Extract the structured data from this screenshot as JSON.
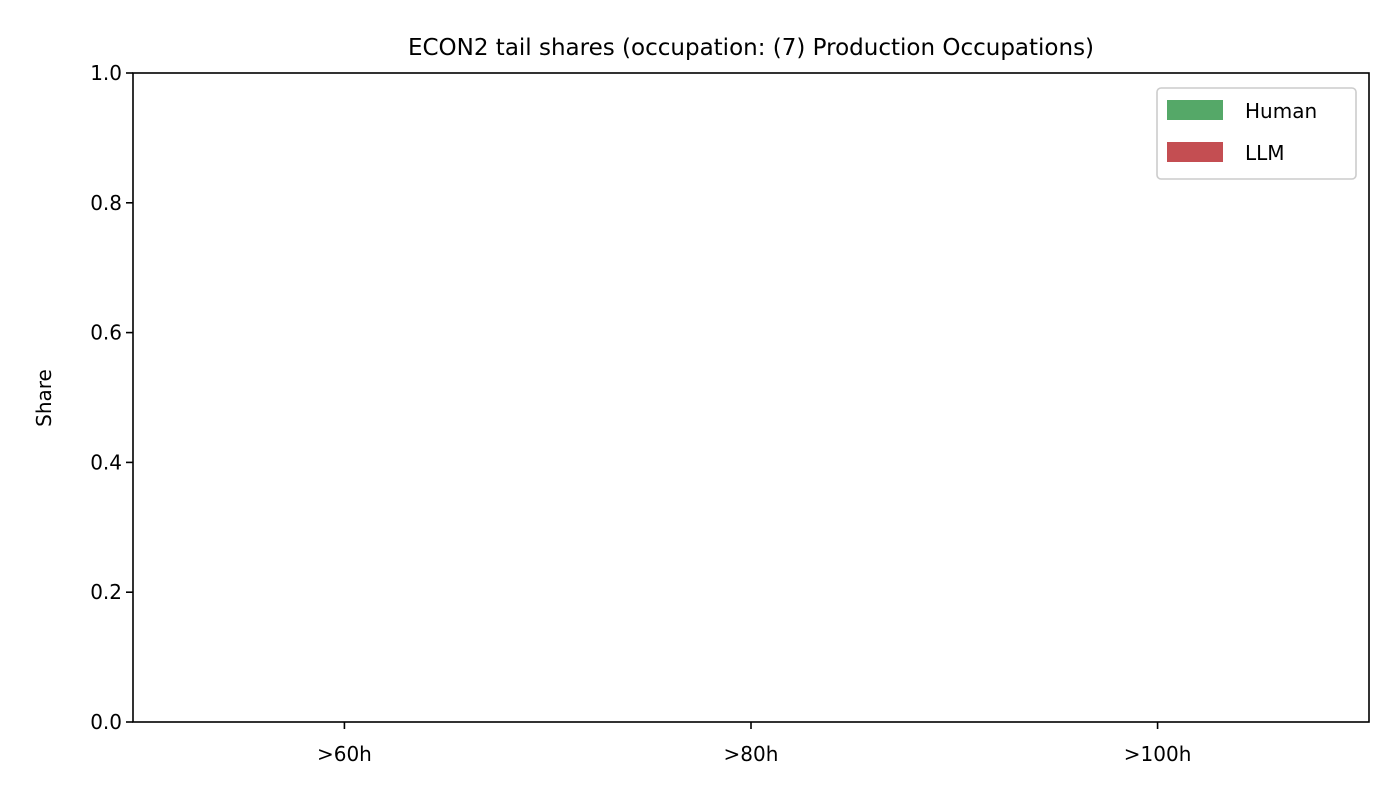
{
  "chart_data": {
    "type": "bar",
    "title": "ECON2 tail shares (occupation: (7) Production Occupations)",
    "xlabel": "",
    "ylabel": "Share",
    "categories": [
      ">60h",
      ">80h",
      ">100h"
    ],
    "series": [
      {
        "name": "Human",
        "color": "#55a868",
        "values": [
          0,
          0,
          0
        ]
      },
      {
        "name": "LLM",
        "color": "#c44e52",
        "values": [
          0,
          0,
          0
        ]
      }
    ],
    "ylim": [
      0,
      1
    ],
    "yticks": [
      "0.0",
      "0.2",
      "0.4",
      "0.6",
      "0.8",
      "1.0"
    ],
    "grid": false,
    "legend_position": "top-right"
  }
}
